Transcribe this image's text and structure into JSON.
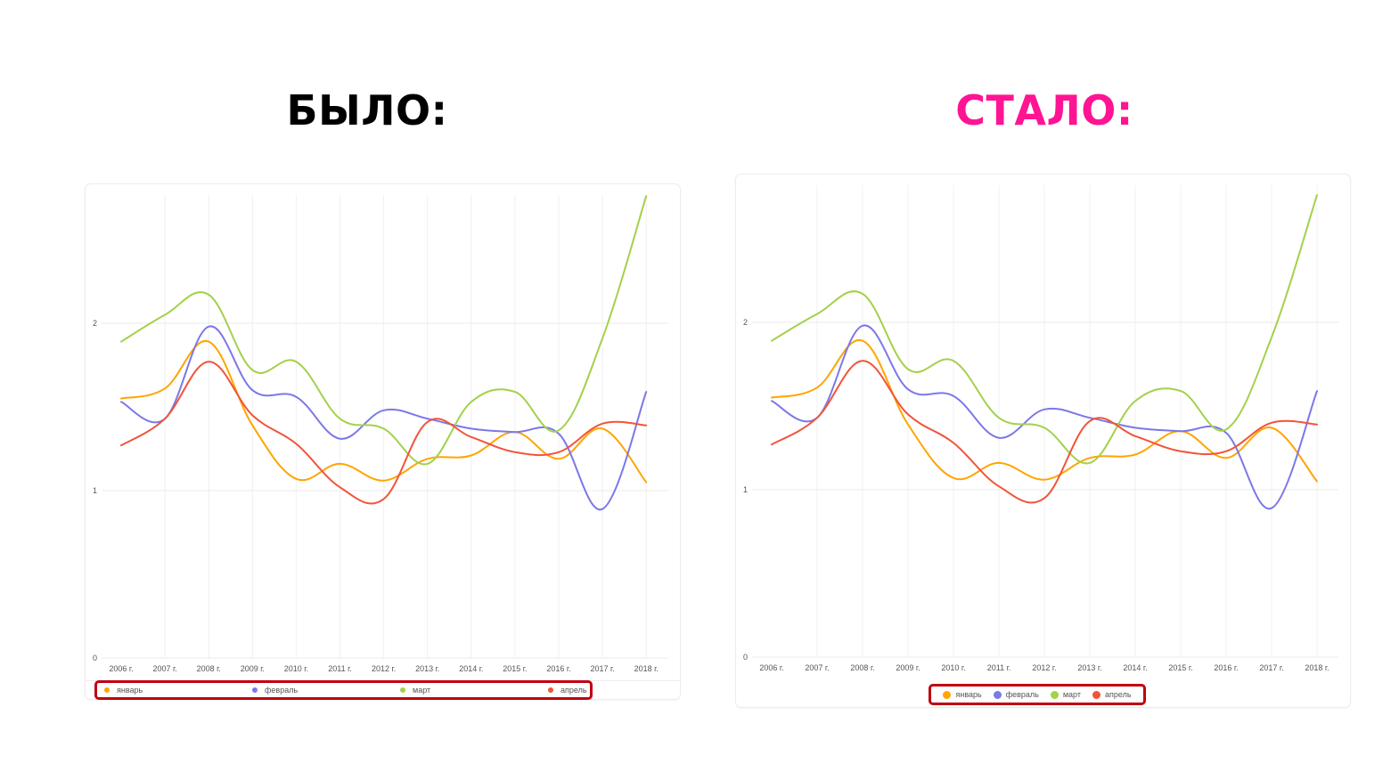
{
  "headings": {
    "before": "БЫЛО:",
    "after": "СТАЛО:",
    "before_color": "#000000",
    "after_color": "#ff1493"
  },
  "legend_outline_color": "#c00010",
  "chart_data": [
    {
      "id": "before",
      "type": "line",
      "title": "",
      "xlabel": "",
      "ylabel": "",
      "categories": [
        "2006 г.",
        "2007 г.",
        "2008 г.",
        "2009 г.",
        "2010 г.",
        "2011 г.",
        "2012 г.",
        "2013 г.",
        "2014 г.",
        "2015 г.",
        "2016 г.",
        "2017 г.",
        "2018 г."
      ],
      "yticks": [
        0,
        1,
        2
      ],
      "ylim": [
        0,
        2.8
      ],
      "grid": true,
      "smooth": true,
      "legend_position": "bottom-spread",
      "series": [
        {
          "name": "январь",
          "color": "#ffa500",
          "values": [
            1.55,
            1.61,
            1.89,
            1.39,
            1.07,
            1.16,
            1.06,
            1.19,
            1.21,
            1.35,
            1.19,
            1.37,
            1.05
          ]
        },
        {
          "name": "февраль",
          "color": "#7b78e8",
          "values": [
            1.53,
            1.43,
            1.98,
            1.6,
            1.56,
            1.31,
            1.48,
            1.43,
            1.37,
            1.35,
            1.34,
            0.89,
            1.59
          ]
        },
        {
          "name": "март",
          "color": "#a3d14a",
          "values": [
            1.89,
            2.05,
            2.17,
            1.72,
            1.77,
            1.43,
            1.37,
            1.16,
            1.53,
            1.59,
            1.36,
            1.91,
            2.76
          ]
        },
        {
          "name": "апрель",
          "color": "#f2533a",
          "values": [
            1.27,
            1.43,
            1.77,
            1.45,
            1.28,
            1.02,
            0.95,
            1.41,
            1.32,
            1.23,
            1.23,
            1.4,
            1.39
          ]
        }
      ]
    },
    {
      "id": "after",
      "type": "line",
      "title": "",
      "xlabel": "",
      "ylabel": "",
      "categories": [
        "2006 г.",
        "2007 г.",
        "2008 г.",
        "2009 г.",
        "2010 г.",
        "2011 г.",
        "2012 г.",
        "2013 г.",
        "2014 г.",
        "2015 г.",
        "2016 г.",
        "2017 г.",
        "2018 г."
      ],
      "yticks": [
        0,
        1,
        2
      ],
      "ylim": [
        0,
        2.8
      ],
      "grid": true,
      "smooth": true,
      "legend_position": "bottom-center",
      "series": [
        {
          "name": "январь",
          "color": "#ffa500",
          "values": [
            1.55,
            1.61,
            1.89,
            1.39,
            1.07,
            1.16,
            1.06,
            1.19,
            1.21,
            1.35,
            1.19,
            1.37,
            1.05
          ]
        },
        {
          "name": "февраль",
          "color": "#7b78e8",
          "values": [
            1.53,
            1.43,
            1.98,
            1.6,
            1.56,
            1.31,
            1.48,
            1.43,
            1.37,
            1.35,
            1.34,
            0.89,
            1.59
          ]
        },
        {
          "name": "март",
          "color": "#a3d14a",
          "values": [
            1.89,
            2.05,
            2.17,
            1.72,
            1.77,
            1.43,
            1.37,
            1.16,
            1.53,
            1.59,
            1.36,
            1.91,
            2.76
          ]
        },
        {
          "name": "апрель",
          "color": "#f2533a",
          "values": [
            1.27,
            1.43,
            1.77,
            1.45,
            1.28,
            1.02,
            0.95,
            1.41,
            1.32,
            1.23,
            1.23,
            1.4,
            1.39
          ]
        }
      ]
    }
  ]
}
